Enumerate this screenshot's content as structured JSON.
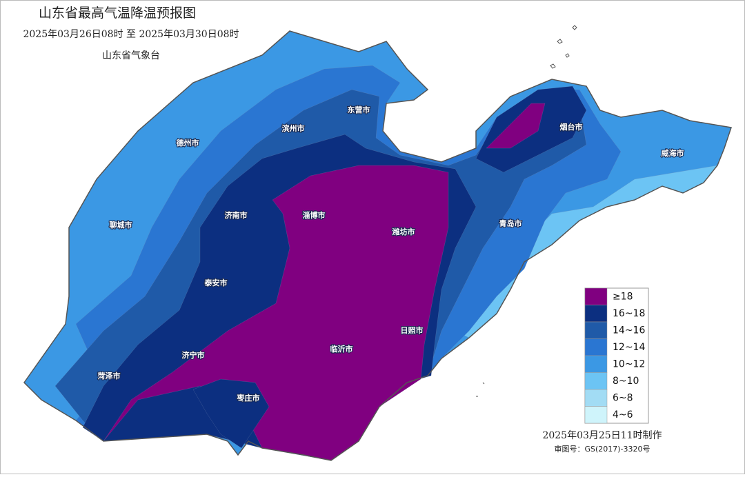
{
  "title": "山东省最高气温降温预报图",
  "period": "2025年03月26日08时  至  2025年03月30日08时",
  "issuer": "山东省气象台",
  "cities": [
    "东营市",
    "滨州市",
    "德州市",
    "烟台市",
    "威海市",
    "济南市",
    "淄博市",
    "潍坊市",
    "聊城市",
    "青岛市",
    "泰安市",
    "日照市",
    "临沂市",
    "济宁市",
    "菏泽市",
    "枣庄市"
  ],
  "legend": [
    {
      "label": "≥18",
      "color": "#800080"
    },
    {
      "label": "16~18",
      "color": "#0c2f80"
    },
    {
      "label": "14~16",
      "color": "#1f5aa8"
    },
    {
      "label": "12~14",
      "color": "#2a76d2"
    },
    {
      "label": "10~12",
      "color": "#3b98e4"
    },
    {
      "label": "8~10",
      "color": "#6cc4f4"
    },
    {
      "label": "6~8",
      "color": "#a2dcf4"
    },
    {
      "label": "4~6",
      "color": "#cff4fb"
    }
  ],
  "footer": {
    "made": "2025年03月25日11时制作",
    "approval": "审图号：GS(2017)-3320号"
  }
}
